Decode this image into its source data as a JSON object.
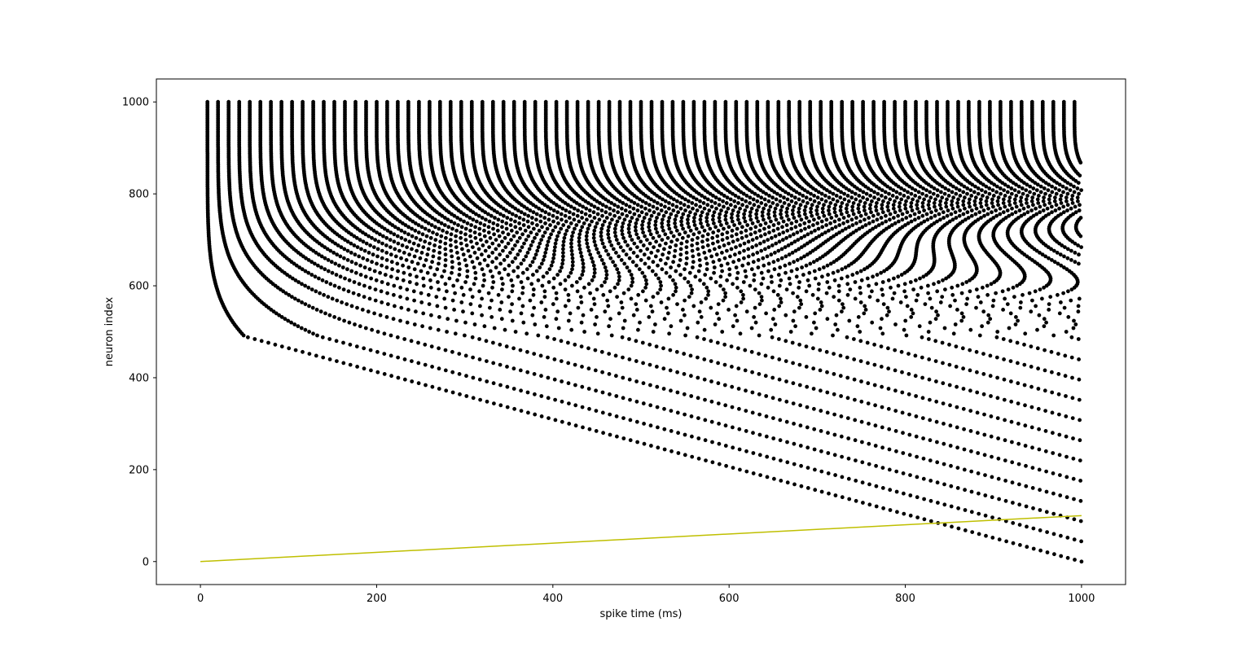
{
  "chart_data": {
    "type": "scatter",
    "title": "",
    "xlabel": "spike time (ms)",
    "ylabel": "neuron index",
    "xlim": [
      -50,
      1050
    ],
    "ylim": [
      -50,
      1050
    ],
    "xticks": [
      0,
      200,
      400,
      600,
      800,
      1000
    ],
    "yticks": [
      0,
      200,
      400,
      600,
      800,
      1000
    ],
    "xtick_labels": [
      "0",
      "200",
      "400",
      "600",
      "800",
      "1000"
    ],
    "ytick_labels": [
      "0",
      "200",
      "400",
      "600",
      "800",
      "1000"
    ],
    "grid": false,
    "legend": "none",
    "series": [
      {
        "name": "spikes",
        "kind": "raster",
        "color": "#000000",
        "marker": "dot",
        "description_values": {
          "neuron_range": [
            0,
            1000
          ],
          "time_range": [
            0,
            1000
          ],
          "threshold_neuron": 490,
          "onset_time_top_neuron": 8,
          "onset_time_threshold_neuron": 50,
          "first_spike_time_neuron_0": 1000,
          "interspike_interval_top_neuron": 12,
          "interspike_interval_threshold_neuron": 85
        }
      },
      {
        "name": "ramp",
        "kind": "line",
        "color": "#bfbf00",
        "x": [
          0,
          1000
        ],
        "y": [
          0,
          100
        ]
      }
    ]
  }
}
